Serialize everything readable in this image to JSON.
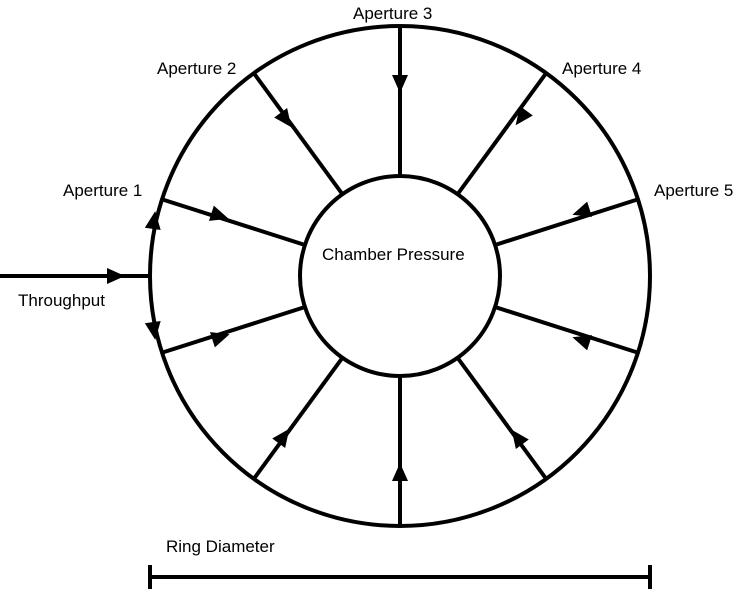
{
  "labels": {
    "aperture_1": "Aperture 1",
    "aperture_2": "Aperture 2",
    "aperture_3": "Aperture 3",
    "aperture_4": "Aperture 4",
    "aperture_5": "Aperture 5",
    "chamber": "Chamber Pressure",
    "throughput": "Throughput",
    "ring_diameter": "Ring Diameter"
  },
  "colors": {
    "stroke": "#000000",
    "background": "#ffffff"
  }
}
